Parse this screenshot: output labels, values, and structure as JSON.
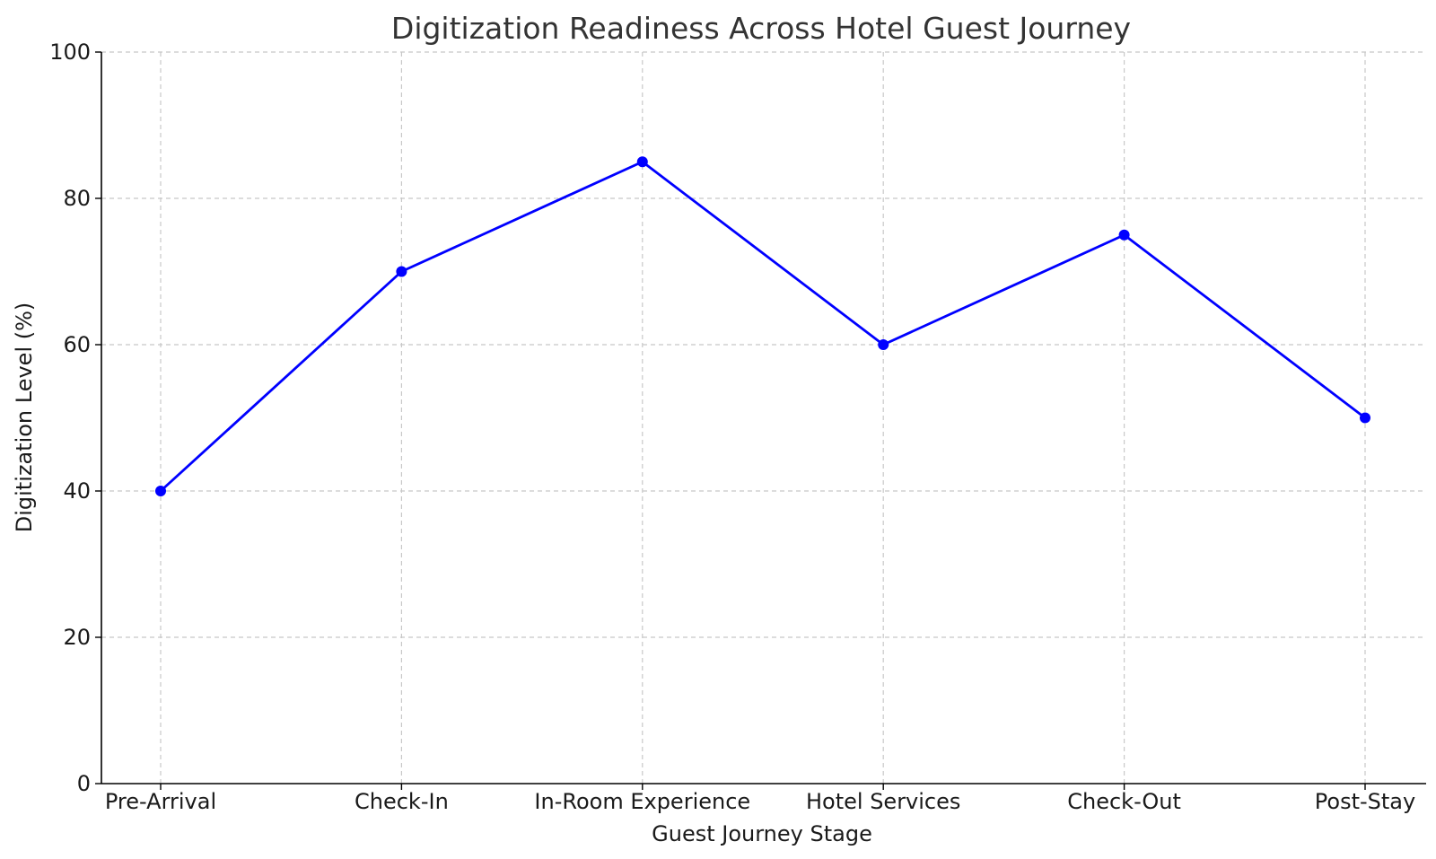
{
  "chart_data": {
    "type": "line",
    "title": "Digitization Readiness Across Hotel Guest Journey",
    "xlabel": "Guest Journey Stage",
    "ylabel": "Digitization Level (%)",
    "categories": [
      "Pre-Arrival",
      "Check-In",
      "In-Room Experience",
      "Hotel Services",
      "Check-Out",
      "Post-Stay"
    ],
    "series": [
      {
        "values": [
          40,
          70,
          85,
          60,
          75,
          50
        ],
        "color": "#0000ff",
        "marker": "circle"
      }
    ],
    "ylim": [
      0,
      100
    ],
    "yticks": [
      0,
      20,
      40,
      60,
      80,
      100
    ],
    "grid": true
  }
}
